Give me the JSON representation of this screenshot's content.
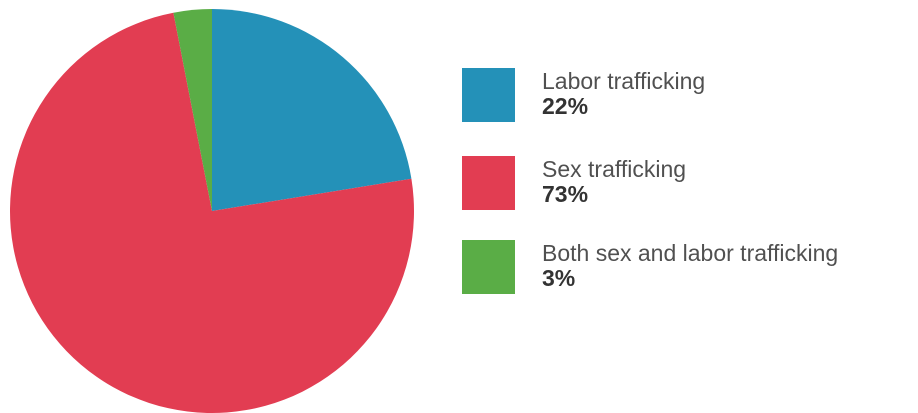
{
  "chart_data": {
    "type": "pie",
    "categories": [
      "Labor trafficking",
      "Sex trafficking",
      "Both sex and labor trafficking"
    ],
    "values": [
      22,
      73,
      3
    ],
    "value_labels": [
      "22%",
      "73%",
      "3%"
    ],
    "colors": [
      "#2491b8",
      "#e23d52",
      "#5aad46"
    ],
    "title": "",
    "legend": "right",
    "start_angle_deg": 0,
    "direction": "clockwise"
  }
}
